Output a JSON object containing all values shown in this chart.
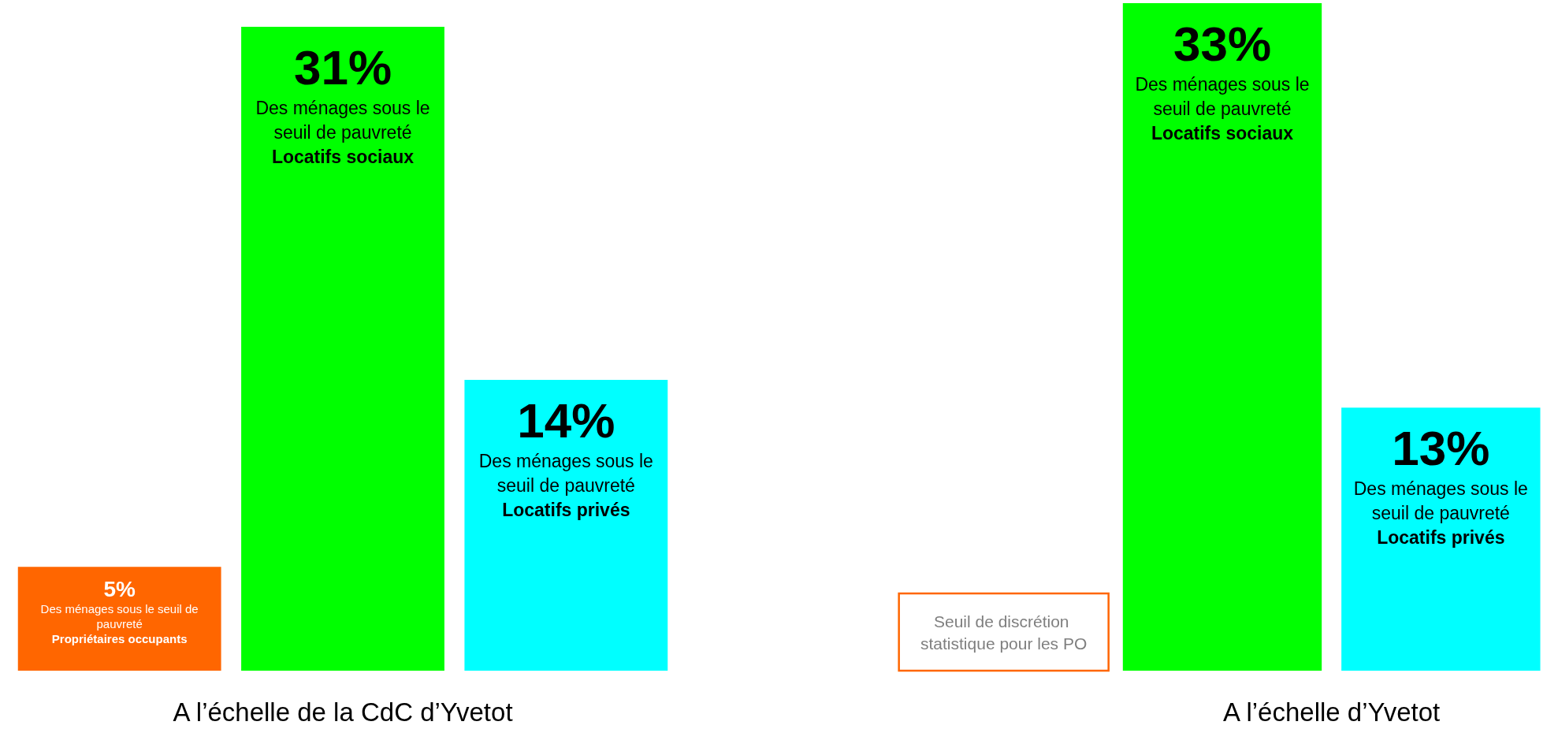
{
  "chart_data": [
    {
      "type": "bar",
      "xlabel": "A l’échelle de la CdC d’Yvetot",
      "categories": [
        "Propriétaires occupants",
        "Locatifs sociaux",
        "Locatifs privés"
      ],
      "values": [
        5,
        31,
        14
      ],
      "colors": [
        "#ff6600",
        "#00ff00",
        "#00ffff"
      ],
      "value_labels": [
        "5%",
        "31%",
        "14%"
      ],
      "tick_labels": false,
      "annotations": [
        "Des ménages sous le seuil de pauvreté",
        "Des ménages sous le seuil de pauvreté",
        "Des ménages sous le seuil de pauvreté"
      ]
    },
    {
      "type": "bar",
      "xlabel": "A l’échelle d’Yvetot",
      "categories": [
        "Locatifs sociaux",
        "Locatifs privés"
      ],
      "values": [
        33,
        13
      ],
      "colors": [
        "#00ff00",
        "#00ffff"
      ],
      "value_labels": [
        "33%",
        "13%"
      ],
      "tick_labels": false,
      "annotations": [
        "Seuil de discrétion statistique pour les PO",
        "Des ménages sous le seuil de pauvreté",
        "Des ménages sous le seuil de pauvreté"
      ]
    }
  ]
}
